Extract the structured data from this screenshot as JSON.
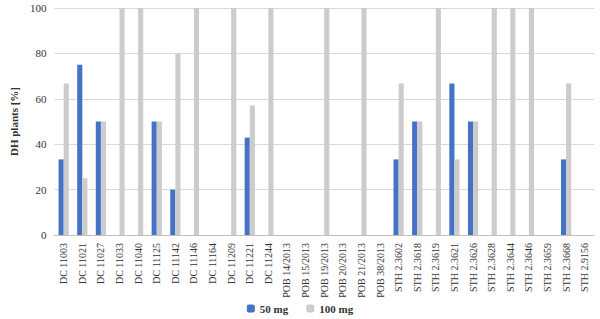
{
  "chart_data": {
    "type": "bar",
    "y_label": "DH plants [%]",
    "categories": [
      "DC 11003",
      "DC 11021",
      "DC 11027",
      "DC 11033",
      "DC 11040",
      "DC 11125",
      "DC 11142",
      "DC 11146",
      "DC 11164",
      "DC 11209",
      "DC 11221",
      "DC 11244",
      "POB 14/2013",
      "POB 15/2013",
      "POB 19/2013",
      "POB 20/2013",
      "POB 21/2013",
      "POB 38/2013",
      "STH 2.3602",
      "STH 2.3618",
      "STH 2.3619",
      "STH 2.3621",
      "STH 2.3626",
      "STH 2.3628",
      "STH 2.3644",
      "STH 2.3646",
      "STH 2.3659",
      "STH 2.3668",
      "STH 2.9156"
    ],
    "series": [
      {
        "name": "50 mg",
        "color": "#4472c4",
        "values": [
          33.3,
          75,
          50,
          0,
          0,
          50,
          20,
          0,
          0,
          0,
          42.9,
          0,
          0,
          0,
          0,
          0,
          0,
          0,
          33.3,
          50,
          0,
          66.7,
          50,
          0,
          0,
          0,
          0,
          33.3,
          0
        ]
      },
      {
        "name": "100 mg",
        "color": "#cccccc",
        "values": [
          66.7,
          25,
          50,
          100,
          100,
          50,
          80,
          100,
          0,
          100,
          57.1,
          100,
          0,
          0,
          100,
          0,
          100,
          0,
          66.7,
          50,
          100,
          33.3,
          50,
          100,
          100,
          100,
          0,
          66.7,
          0
        ]
      }
    ],
    "ylim": [
      0,
      100
    ],
    "yticks": [
      0,
      20,
      40,
      60,
      80,
      100
    ],
    "grid": true,
    "legend": "bottom"
  }
}
